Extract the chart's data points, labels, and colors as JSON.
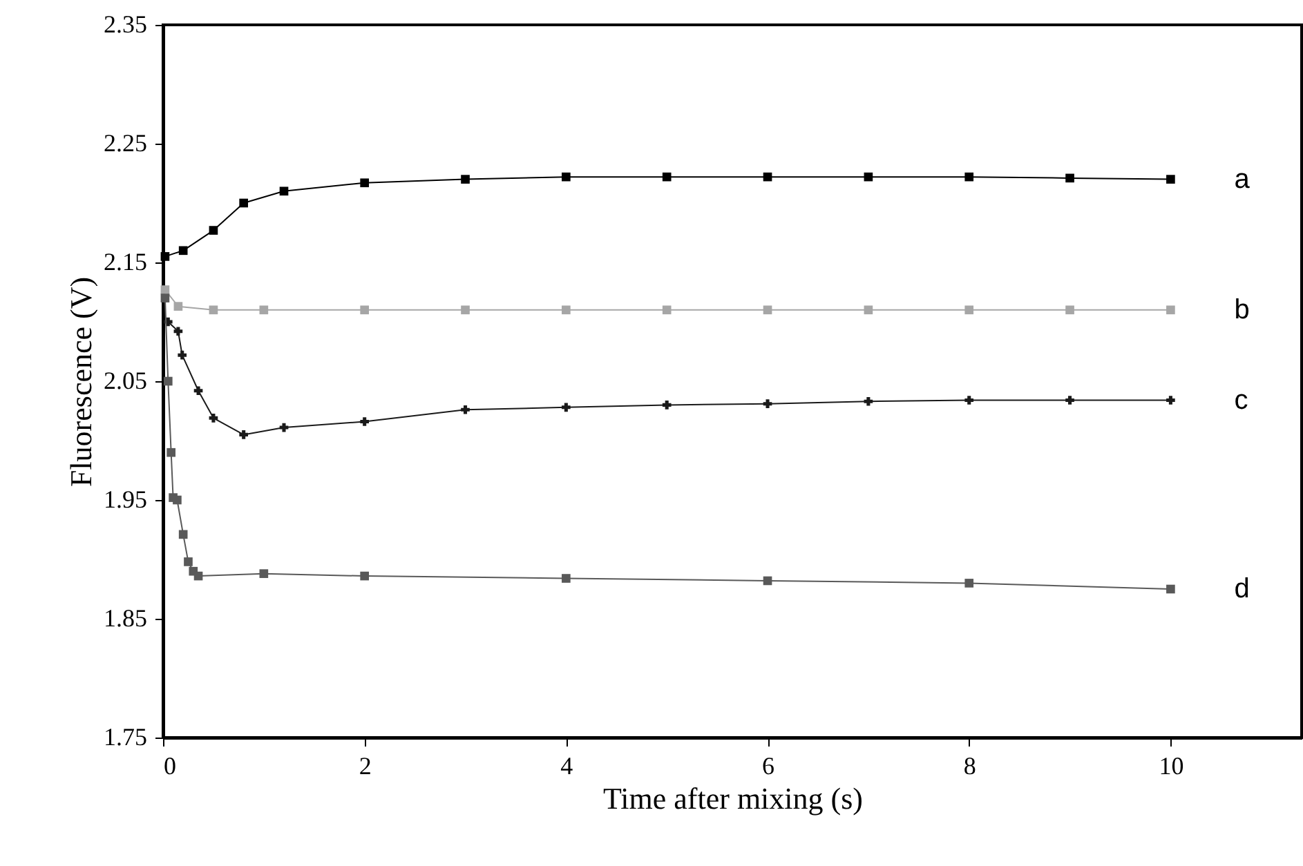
{
  "chart_data": {
    "type": "line",
    "xlabel": "Time after mixing (s)",
    "ylabel": "Fluorescence (V)",
    "xlim": [
      0,
      11.3
    ],
    "xticks": [
      0,
      2,
      4,
      6,
      8,
      10
    ],
    "ylim": [
      1.75,
      2.35
    ],
    "yticks": [
      1.75,
      1.85,
      1.95,
      2.05,
      2.15,
      2.25,
      2.35
    ],
    "marker": "square",
    "series": [
      {
        "name": "a",
        "color": "#000000",
        "x": [
          0.02,
          0.2,
          0.5,
          0.8,
          1.2,
          2,
          3,
          4,
          5,
          6,
          7,
          8,
          9,
          10
        ],
        "values": [
          2.155,
          2.16,
          2.177,
          2.2,
          2.21,
          2.217,
          2.22,
          2.222,
          2.222,
          2.222,
          2.222,
          2.222,
          2.221,
          2.22
        ]
      },
      {
        "name": "b",
        "color": "#a6a6a6",
        "x": [
          0.02,
          0.15,
          0.5,
          1,
          2,
          3,
          4,
          5,
          6,
          7,
          8,
          9,
          10
        ],
        "values": [
          2.127,
          2.113,
          2.11,
          2.11,
          2.11,
          2.11,
          2.11,
          2.11,
          2.11,
          2.11,
          2.11,
          2.11,
          2.11
        ]
      },
      {
        "name": "c",
        "color": "#1a1a1a",
        "marker": "cross",
        "x": [
          0.05,
          0.15,
          0.19,
          0.35,
          0.5,
          0.8,
          1.2,
          2,
          3,
          4,
          5,
          6,
          7,
          8,
          9,
          10
        ],
        "values": [
          2.1,
          2.092,
          2.072,
          2.042,
          2.019,
          2.005,
          2.011,
          2.016,
          2.026,
          2.028,
          2.03,
          2.031,
          2.033,
          2.034,
          2.034,
          2.034
        ]
      },
      {
        "name": "d",
        "color": "#595959",
        "x": [
          0.02,
          0.05,
          0.08,
          0.1,
          0.14,
          0.2,
          0.25,
          0.3,
          0.35,
          1,
          2,
          4,
          6,
          8,
          10
        ],
        "values": [
          2.12,
          2.05,
          1.99,
          1.952,
          1.95,
          1.921,
          1.898,
          1.89,
          1.886,
          1.888,
          1.886,
          1.884,
          1.882,
          1.88,
          1.875
        ]
      }
    ]
  }
}
